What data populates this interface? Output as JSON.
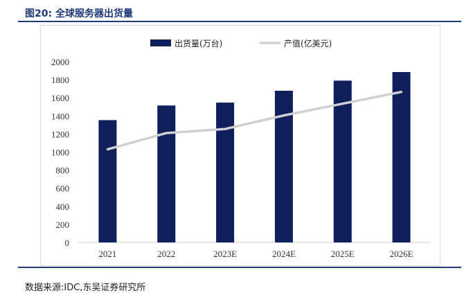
{
  "figure": {
    "title": "图20:  全球服务器出货量",
    "source": "数据来源:IDC,东吴证券研究所"
  },
  "colors": {
    "bar": "#0f1f5c",
    "line": "#d0d0d0",
    "rule": "#1f3a78"
  },
  "chart_data": {
    "type": "bar",
    "categories": [
      "2021",
      "2022",
      "2023E",
      "2024E",
      "2025E",
      "2026E"
    ],
    "series": [
      {
        "name": "出货量(万台)",
        "type": "bar",
        "values": [
          1353,
          1515,
          1547,
          1678,
          1790,
          1885
        ]
      },
      {
        "name": "产值(亿美元)",
        "type": "line",
        "values": [
          1030,
          1210,
          1255,
          1405,
          1535,
          1665
        ]
      }
    ],
    "ylim": [
      0,
      2000
    ],
    "yticks": [
      0,
      200,
      400,
      600,
      800,
      1000,
      1200,
      1400,
      1600,
      1800,
      2000
    ],
    "legend": "top-center",
    "grid": false
  }
}
